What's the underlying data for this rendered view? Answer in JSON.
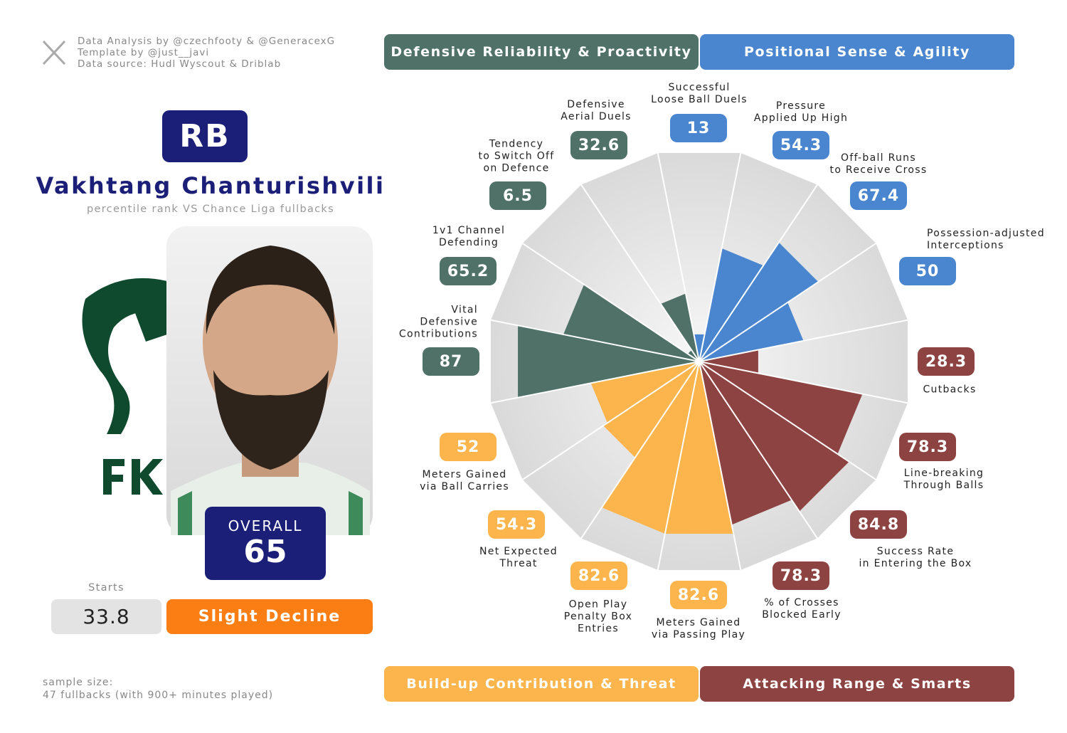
{
  "credits": [
    "Data Analysis by @czechfooty & @GeneracexG",
    "Template by @just__javi",
    "Data source: Hudl Wyscout & Driblab"
  ],
  "player": {
    "position": "RB",
    "name": "Vakhtang Chanturishvili",
    "subtitle": "percentile rank VS Chance Liga fullbacks",
    "overall_label": "OVERALL",
    "overall": 65,
    "starts_label": "Starts",
    "starts": 33.8,
    "trend": "Slight Decline"
  },
  "footer": [
    "sample size:",
    "47 fullbacks (with 900+ minutes played)"
  ],
  "chart_data": {
    "type": "polar_bar",
    "ylim": [
      0,
      100
    ],
    "series": [
      {
        "name": "Positional Sense & Agility",
        "color": "#4a86d0",
        "categories": [
          "Successful\nLoose Ball Duels",
          "Pressure\nApplied Up High",
          "Off-ball Runs\nto Receive Cross",
          "Possession-adjusted\nInterceptions"
        ],
        "values": [
          13,
          54.3,
          67.4,
          50
        ]
      },
      {
        "name": "Attacking Range & Smarts",
        "color": "#8e4343",
        "categories": [
          "Cutbacks",
          "Line-breaking\nThrough Balls",
          "Success Rate\nin Entering the Box",
          "% of Crosses\nBlocked Early"
        ],
        "values": [
          28.3,
          78.3,
          84.8,
          78.3
        ]
      },
      {
        "name": "Build-up Contribution & Threat",
        "color": "#fbb54c",
        "categories": [
          "Meters Gained\nvia Passing Play",
          "Open Play\nPenalty Box\nEntries",
          "Net Expected\nThreat",
          "Meters Gained\nvia Ball Carries"
        ],
        "values": [
          82.6,
          82.6,
          54.3,
          52
        ]
      },
      {
        "name": "Defensive Reliability & Proactivity",
        "color": "#4f7167",
        "categories": [
          "Vital\nDefensive\nContributions",
          "1v1 Channel\nDefending",
          "Tendency\nto Switch Off\non Defence",
          "Defensive\nAerial Duels"
        ],
        "values": [
          87,
          65.2,
          6.5,
          32.6
        ]
      }
    ]
  }
}
